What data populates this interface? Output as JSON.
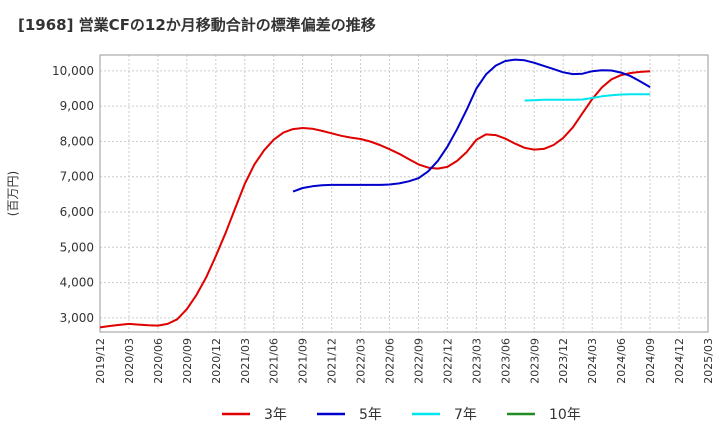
{
  "title": "[1968]  営業CFの12か月移動合計の標準偏差の推移",
  "chart_data": {
    "type": "line",
    "title": "[1968]  営業CFの12か月移動合計の標準偏差の推移",
    "xlabel": "",
    "ylabel": "(百万円)",
    "ylim": [
      2600,
      10450
    ],
    "yticks": [
      3000,
      4000,
      5000,
      6000,
      7000,
      8000,
      9000,
      10000
    ],
    "ytick_labels": [
      "3,000",
      "4,000",
      "5,000",
      "6,000",
      "7,000",
      "8,000",
      "9,000",
      "10,000"
    ],
    "x_start": "2019/12",
    "x_end": "2025/03",
    "x_tick_labels": [
      "2019/12",
      "2020/03",
      "2020/06",
      "2020/09",
      "2020/12",
      "2021/03",
      "2021/06",
      "2021/09",
      "2021/12",
      "2022/03",
      "2022/06",
      "2022/09",
      "2022/12",
      "2023/03",
      "2023/06",
      "2023/09",
      "2023/12",
      "2024/03",
      "2024/06",
      "2024/09",
      "2024/12",
      "2025/03"
    ],
    "grid": true,
    "legend_position": "bottom",
    "series": [
      {
        "name": "3年",
        "color": "#e00000",
        "x": [
          "2019/12",
          "2020/01",
          "2020/02",
          "2020/03",
          "2020/04",
          "2020/05",
          "2020/06",
          "2020/07",
          "2020/08",
          "2020/09",
          "2020/10",
          "2020/11",
          "2020/12",
          "2021/01",
          "2021/02",
          "2021/03",
          "2021/04",
          "2021/05",
          "2021/06",
          "2021/07",
          "2021/08",
          "2021/09",
          "2021/10",
          "2021/11",
          "2021/12",
          "2022/01",
          "2022/02",
          "2022/03",
          "2022/04",
          "2022/05",
          "2022/06",
          "2022/07",
          "2022/08",
          "2022/09",
          "2022/10",
          "2022/11",
          "2022/12",
          "2023/01",
          "2023/02",
          "2023/03",
          "2023/04",
          "2023/05",
          "2023/06",
          "2023/07",
          "2023/08",
          "2023/09",
          "2023/10",
          "2023/11",
          "2023/12",
          "2024/01",
          "2024/02",
          "2024/03",
          "2024/04",
          "2024/05",
          "2024/06",
          "2024/07",
          "2024/08",
          "2024/09"
        ],
        "values": [
          2730,
          2770,
          2800,
          2830,
          2810,
          2790,
          2780,
          2830,
          2960,
          3250,
          3650,
          4150,
          4750,
          5400,
          6100,
          6800,
          7350,
          7750,
          8050,
          8250,
          8350,
          8380,
          8360,
          8300,
          8230,
          8160,
          8110,
          8070,
          8000,
          7900,
          7780,
          7650,
          7500,
          7350,
          7260,
          7230,
          7280,
          7450,
          7700,
          8050,
          8200,
          8180,
          8080,
          7940,
          7820,
          7770,
          7790,
          7900,
          8100,
          8400,
          8800,
          9200,
          9530,
          9760,
          9880,
          9940,
          9970,
          9990
        ]
      },
      {
        "name": "5年",
        "color": "#0000cc",
        "x": [
          "2021/08",
          "2021/09",
          "2021/10",
          "2021/11",
          "2021/12",
          "2022/01",
          "2022/02",
          "2022/03",
          "2022/04",
          "2022/05",
          "2022/06",
          "2022/07",
          "2022/08",
          "2022/09",
          "2022/10",
          "2022/11",
          "2022/12",
          "2023/01",
          "2023/02",
          "2023/03",
          "2023/04",
          "2023/05",
          "2023/06",
          "2023/07",
          "2023/08",
          "2023/09",
          "2023/10",
          "2023/11",
          "2023/12",
          "2024/01",
          "2024/02",
          "2024/03",
          "2024/04",
          "2024/05",
          "2024/06",
          "2024/07",
          "2024/08",
          "2024/09"
        ],
        "values": [
          6580,
          6680,
          6730,
          6760,
          6770,
          6770,
          6770,
          6770,
          6770,
          6770,
          6780,
          6810,
          6870,
          6960,
          7150,
          7450,
          7850,
          8350,
          8900,
          9500,
          9900,
          10150,
          10280,
          10320,
          10300,
          10230,
          10140,
          10050,
          9960,
          9910,
          9920,
          9990,
          10020,
          10010,
          9950,
          9850,
          9700,
          9540
        ]
      },
      {
        "name": "7年",
        "color": "#00e5ee",
        "x": [
          "2023/08",
          "2023/09",
          "2023/10",
          "2023/11",
          "2023/12",
          "2024/01",
          "2024/02",
          "2024/03",
          "2024/04",
          "2024/05",
          "2024/06",
          "2024/07",
          "2024/08",
          "2024/09"
        ],
        "values": [
          9160,
          9170,
          9180,
          9180,
          9180,
          9180,
          9190,
          9230,
          9280,
          9310,
          9330,
          9340,
          9340,
          9340
        ]
      },
      {
        "name": "10年",
        "color": "#228b22",
        "x": [],
        "values": []
      }
    ]
  }
}
